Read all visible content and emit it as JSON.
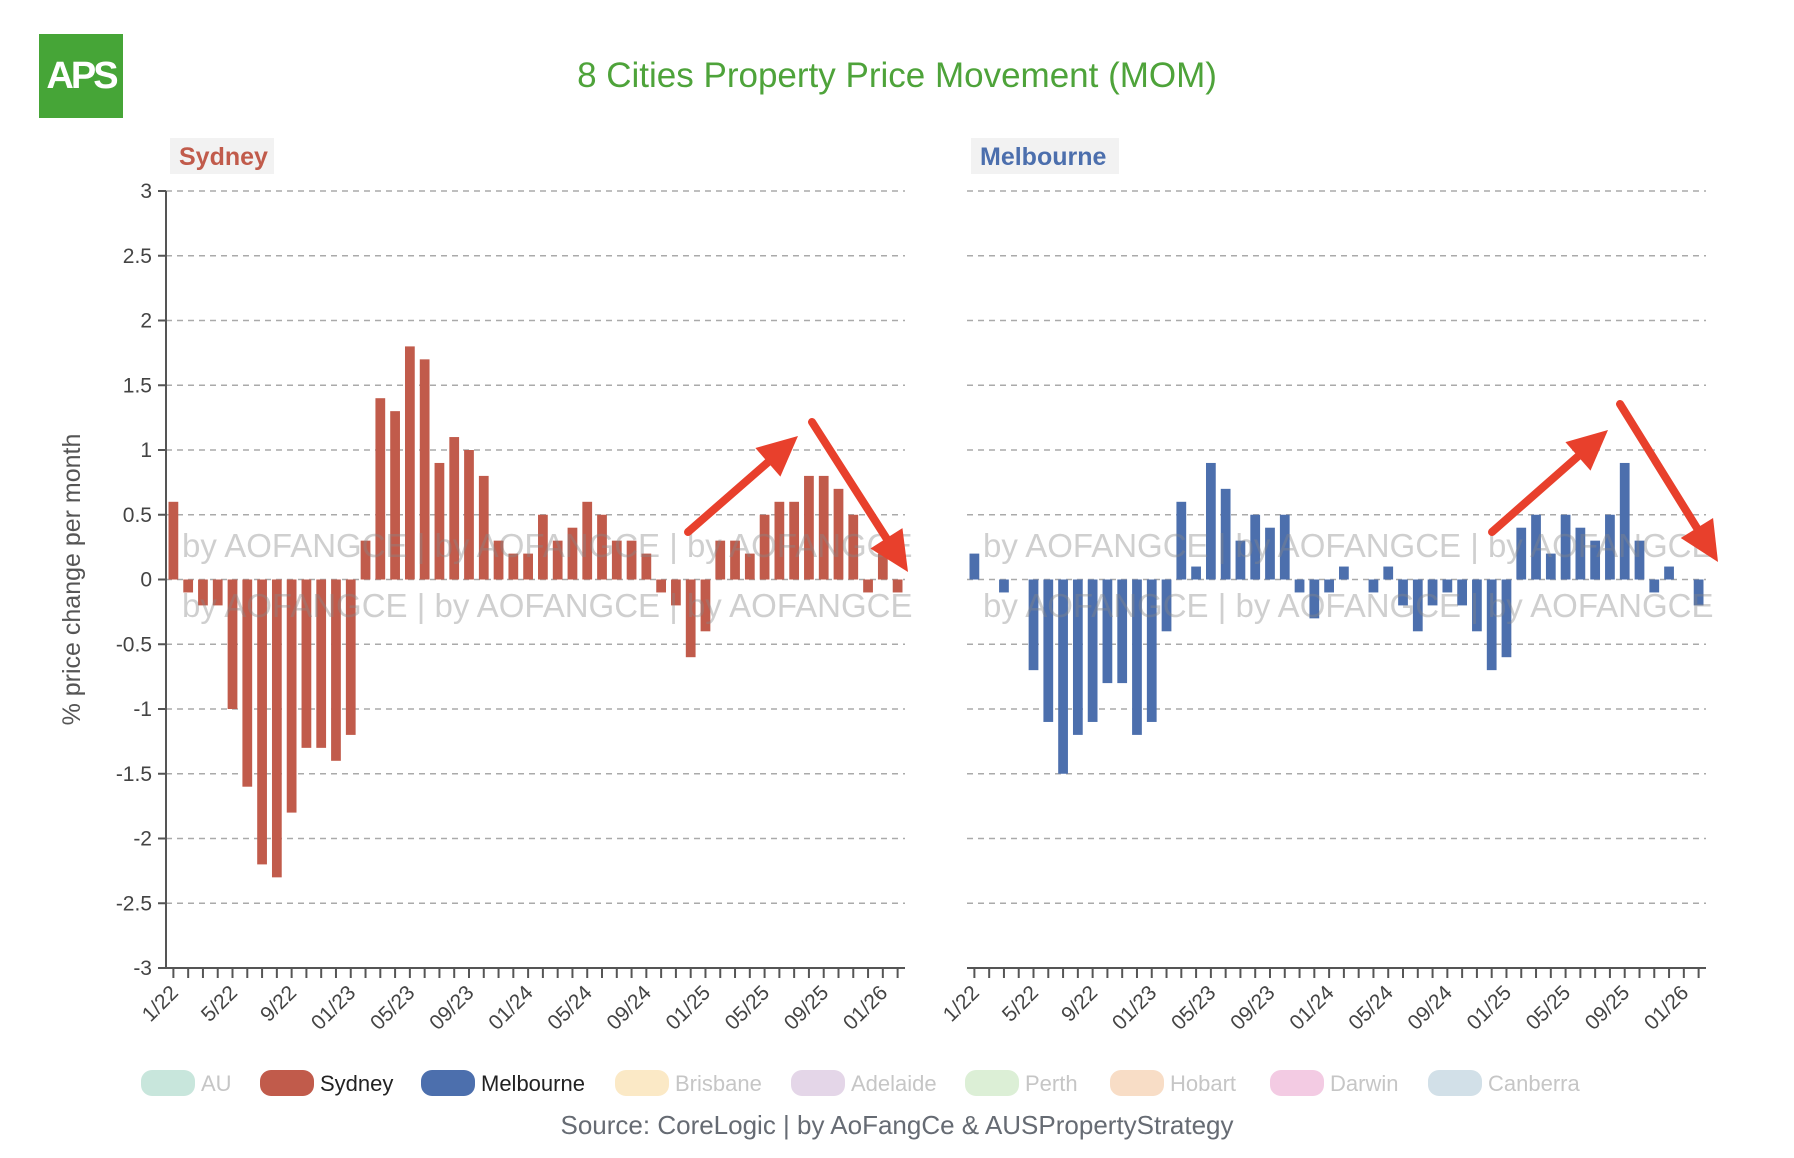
{
  "logo": {
    "text": "APS"
  },
  "title": "8 Cities Property Price Movement (MOM)",
  "source": "Source: CoreLogic | by AoFangCe & AUSPropertyStrategy",
  "watermark": "by AOFANGCE | by AOFANGCE | by AOFANGCE",
  "ylabel": "% price change per month",
  "colors": {
    "sydney": "#c15b4b",
    "melbourne": "#4c6fad",
    "arrow": "#e8402c",
    "title": "#4ea33a"
  },
  "chart_data": [
    {
      "type": "bar",
      "panel_title": "Sydney",
      "color": "#c15b4b",
      "ylim": [
        -3,
        3
      ],
      "yticks": [
        "3",
        "2.5",
        "2",
        "1.5",
        "1",
        "0.5",
        "0",
        "-0.5",
        "-1",
        "-1.5",
        "-2",
        "-2.5",
        "-3"
      ],
      "xticklabels": [
        "1/22",
        "5/22",
        "9/22",
        "01/23",
        "05/23",
        "09/23",
        "01/24",
        "05/24",
        "09/24",
        "01/25",
        "05/25",
        "09/25",
        "01/26"
      ],
      "values": [
        0.6,
        -0.1,
        -0.2,
        -0.2,
        -1.0,
        -1.6,
        -2.2,
        -2.3,
        -1.8,
        -1.3,
        -1.3,
        -1.4,
        -1.2,
        0.3,
        1.4,
        1.3,
        1.8,
        1.7,
        0.9,
        1.1,
        1.0,
        0.8,
        0.3,
        0.2,
        0.2,
        0.5,
        0.3,
        0.4,
        0.6,
        0.5,
        0.3,
        0.3,
        0.2,
        -0.1,
        -0.2,
        -0.6,
        -0.4,
        0.3,
        0.3,
        0.2,
        0.5,
        0.6,
        0.6,
        0.8,
        0.8,
        0.7,
        0.5,
        -0.1,
        0.2,
        -0.1
      ]
    },
    {
      "type": "bar",
      "panel_title": "Melbourne",
      "color": "#4c6fad",
      "ylim": [
        -3,
        3
      ],
      "xticklabels": [
        "1/22",
        "5/22",
        "9/22",
        "01/23",
        "05/23",
        "09/23",
        "01/24",
        "05/24",
        "09/24",
        "01/25",
        "05/25",
        "09/25",
        "01/26"
      ],
      "values": [
        0.2,
        0,
        -0.1,
        0,
        -0.7,
        -1.1,
        -1.5,
        -1.2,
        -1.1,
        -0.8,
        -0.8,
        -1.2,
        -1.1,
        -0.4,
        0.6,
        0.1,
        0.9,
        0.7,
        0.3,
        0.5,
        0.4,
        0.5,
        -0.1,
        -0.3,
        -0.1,
        0.1,
        0,
        -0.1,
        0.1,
        -0.2,
        -0.4,
        -0.2,
        -0.1,
        -0.2,
        -0.4,
        -0.7,
        -0.6,
        0.4,
        0.5,
        0.2,
        0.5,
        0.4,
        0.3,
        0.5,
        0.9,
        0.3,
        -0.1,
        0.1,
        0,
        -0.2
      ]
    }
  ],
  "legend": [
    {
      "label": "AU",
      "color": "#c8e6dc",
      "active": false
    },
    {
      "label": "Sydney",
      "color": "#c15b4b",
      "active": true
    },
    {
      "label": "Melbourne",
      "color": "#4c6fad",
      "active": true
    },
    {
      "label": "Brisbane",
      "color": "#fbe9c6",
      "active": false
    },
    {
      "label": "Adelaide",
      "color": "#e4d6e8",
      "active": false
    },
    {
      "label": "Perth",
      "color": "#dcefd6",
      "active": false
    },
    {
      "label": "Hobart",
      "color": "#f8ddc6",
      "active": false
    },
    {
      "label": "Darwin",
      "color": "#f3cbe3",
      "active": false
    },
    {
      "label": "Canberra",
      "color": "#d2e0e8",
      "active": false
    }
  ]
}
